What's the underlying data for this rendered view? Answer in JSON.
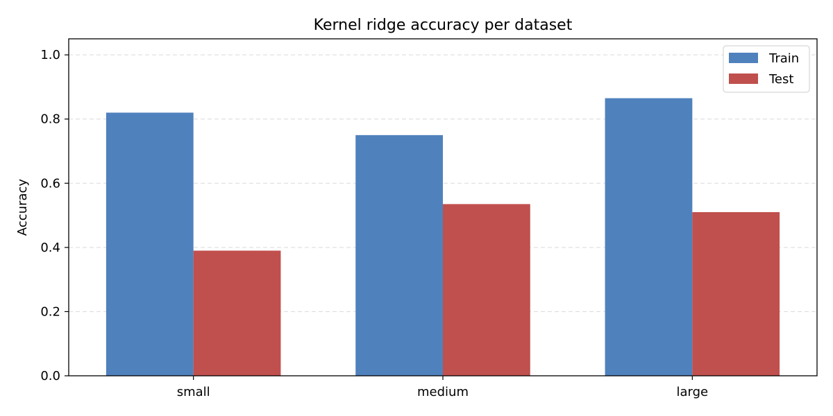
{
  "chart_data": {
    "type": "bar",
    "title": "Kernel ridge accuracy per dataset",
    "xlabel": "",
    "ylabel": "Accuracy",
    "categories": [
      "small",
      "medium",
      "large"
    ],
    "series": [
      {
        "name": "Train",
        "values": [
          0.82,
          0.75,
          0.865
        ],
        "color": "#4f81bd"
      },
      {
        "name": "Test",
        "values": [
          0.39,
          0.535,
          0.51
        ],
        "color": "#c0504d"
      }
    ],
    "ylim": [
      0,
      1.05
    ],
    "yticks": [
      "0.0",
      "0.2",
      "0.4",
      "0.6",
      "0.8",
      "1.0"
    ],
    "grid": "y-dashed",
    "legend": "top-right"
  }
}
